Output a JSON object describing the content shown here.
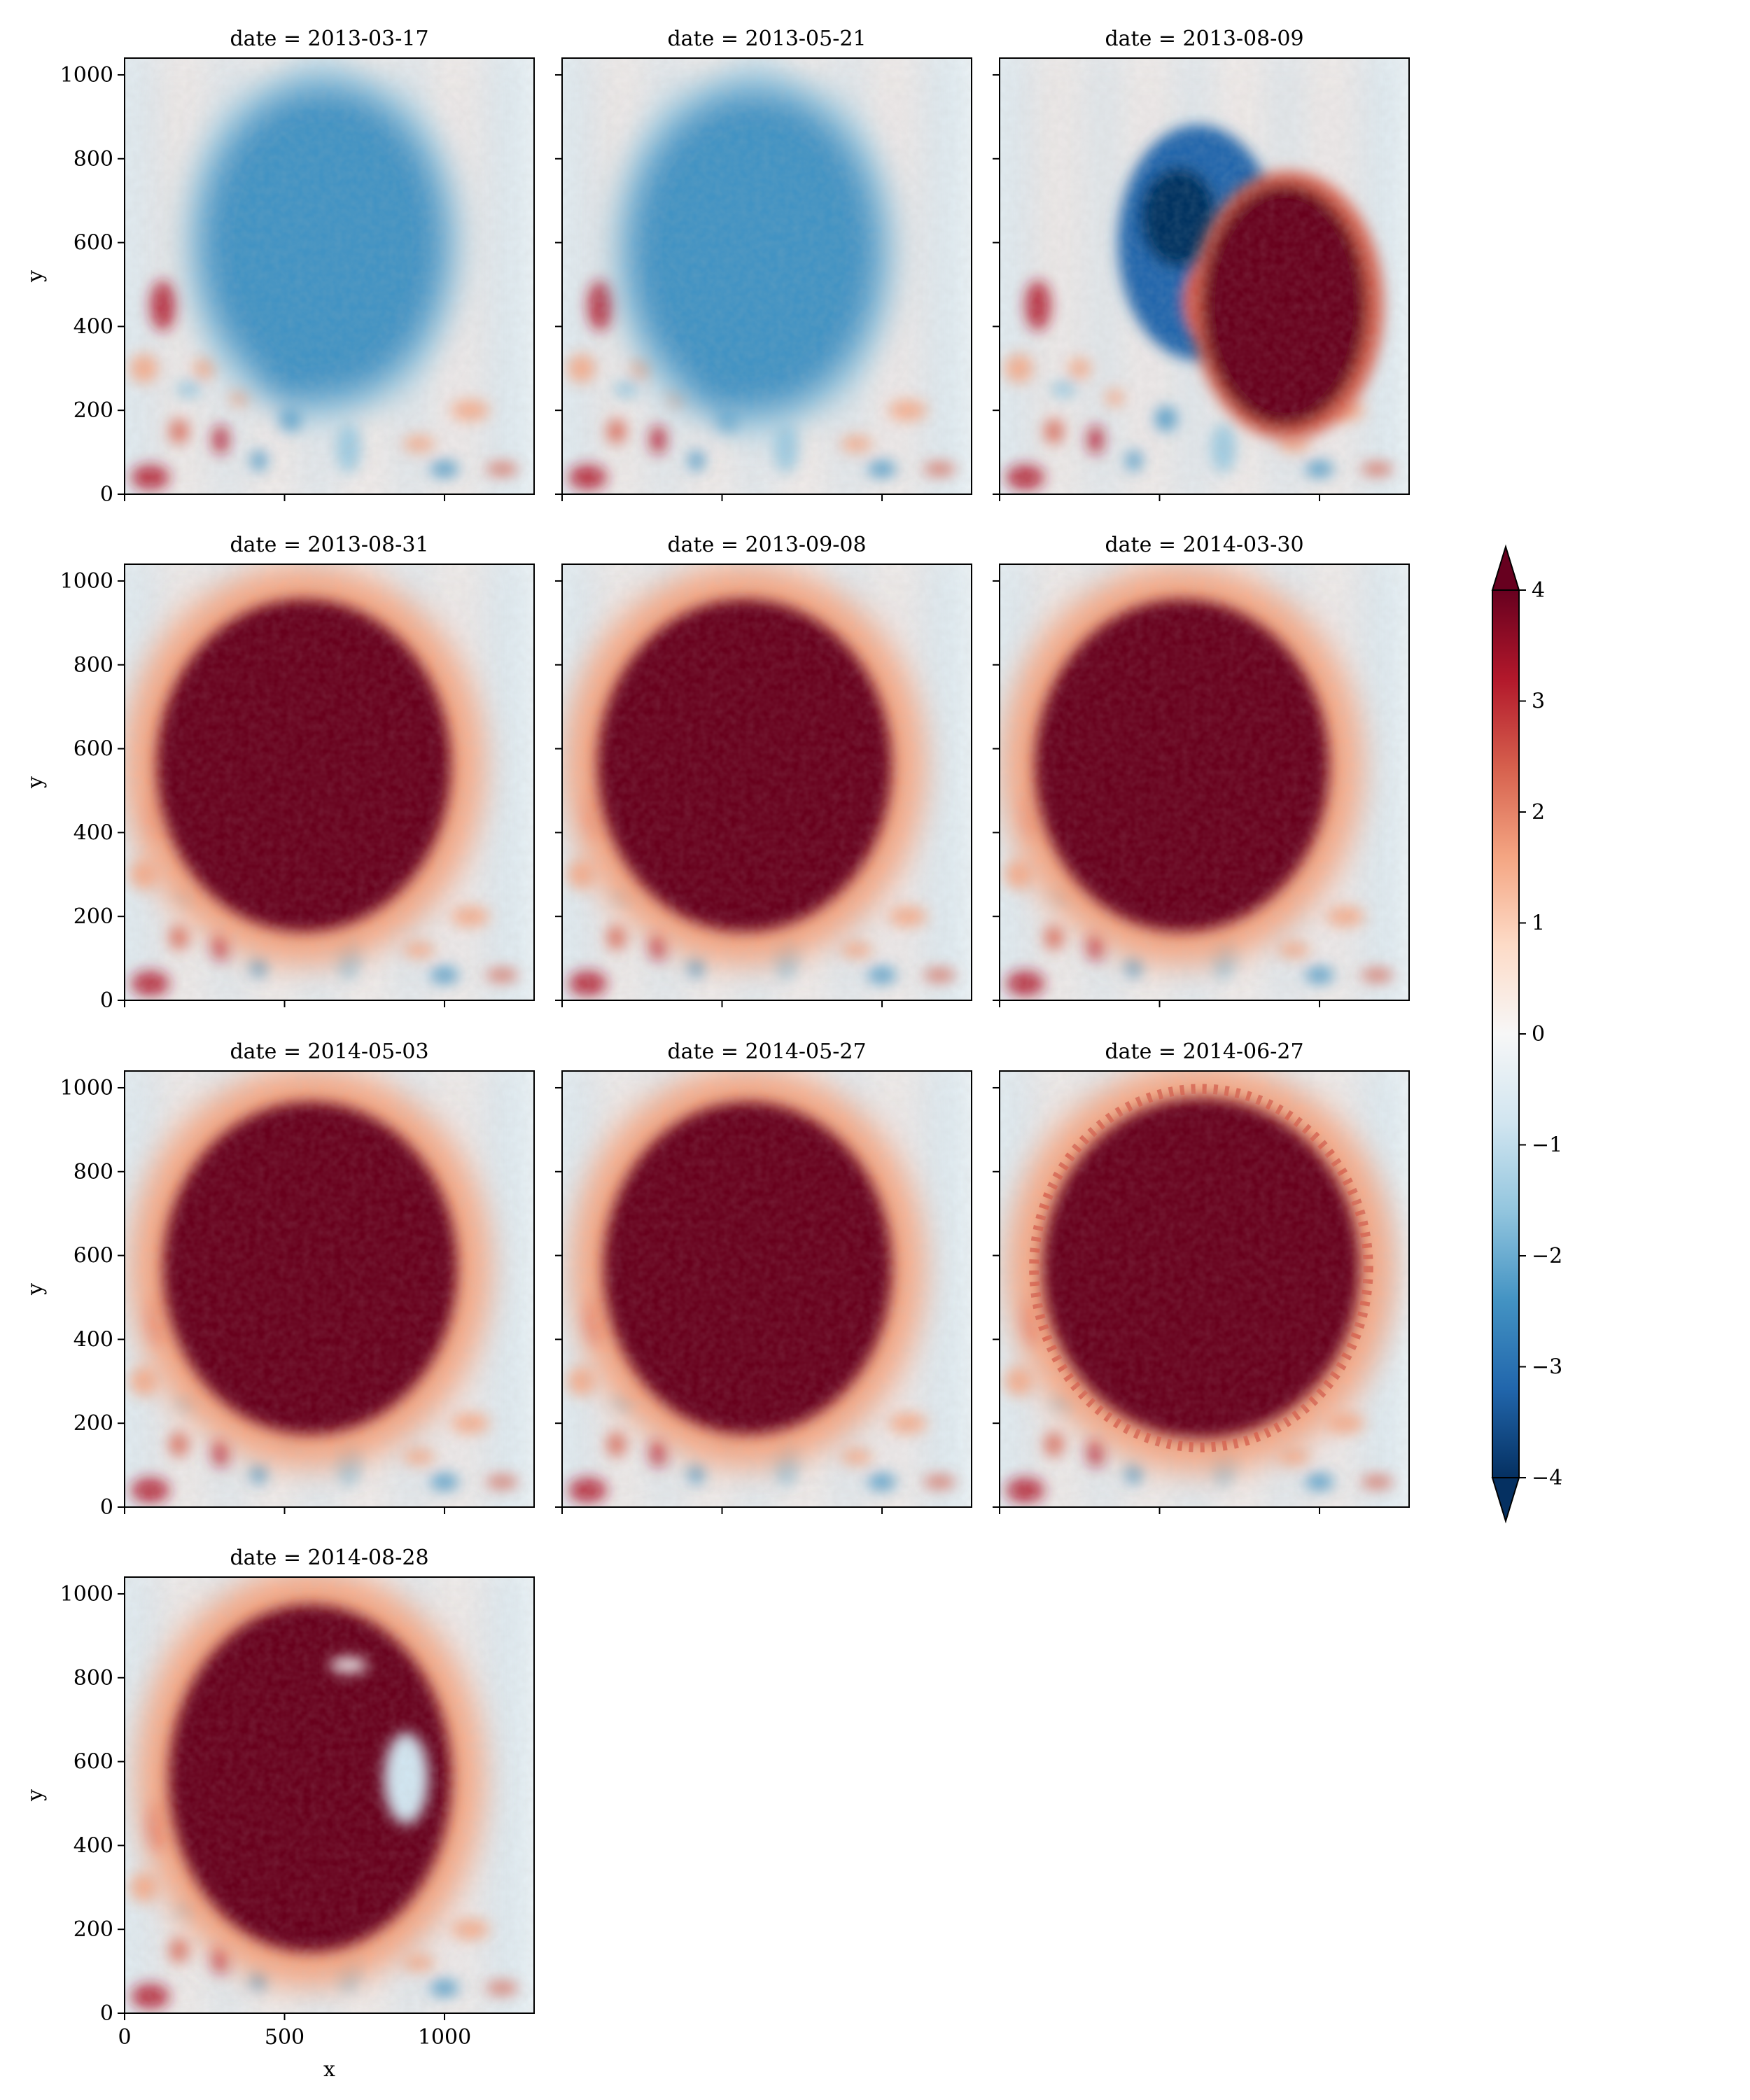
{
  "chart_data": {
    "type": "heatmap",
    "layout": "faceted grid, 3 columns",
    "facet_key": "date",
    "panels": [
      {
        "title": "date = 2013-03-17",
        "state": "negative",
        "center": [
          620,
          600
        ],
        "radius": [
          400,
          400
        ]
      },
      {
        "title": "date = 2013-05-21",
        "state": "negative",
        "center": [
          600,
          580
        ],
        "radius": [
          410,
          410
        ]
      },
      {
        "title": "date = 2013-08-09",
        "state": "mixed",
        "center": [
          800,
          480
        ],
        "radius": [
          420,
          380
        ]
      },
      {
        "title": "date = 2013-08-31",
        "state": "positive",
        "center": [
          560,
          560
        ],
        "radius": [
          510,
          440
        ]
      },
      {
        "title": "date = 2013-09-08",
        "state": "positive",
        "center": [
          570,
          560
        ],
        "radius": [
          510,
          440
        ]
      },
      {
        "title": "date = 2014-03-30",
        "state": "positive",
        "center": [
          570,
          560
        ],
        "radius": [
          510,
          440
        ]
      },
      {
        "title": "date = 2014-05-03",
        "state": "positive",
        "center": [
          580,
          570
        ],
        "radius": [
          510,
          440
        ]
      },
      {
        "title": "date = 2014-05-27",
        "state": "positive",
        "center": [
          580,
          570
        ],
        "radius": [
          500,
          440
        ]
      },
      {
        "title": "date = 2014-06-27",
        "state": "positive-speckled",
        "center": [
          630,
          570
        ],
        "radius": [
          550,
          450
        ]
      },
      {
        "title": "date = 2014-08-28",
        "state": "positive-with-gaps",
        "center": [
          580,
          560
        ],
        "radius": [
          490,
          460
        ]
      }
    ],
    "xlabel": "x",
    "ylabel": "y",
    "xlim": [
      0,
      1280
    ],
    "ylim": [
      0,
      1040
    ],
    "xticks": [
      0,
      500,
      1000
    ],
    "yticks": [
      0,
      200,
      400,
      600,
      800,
      1000
    ],
    "colorbar": {
      "cmap": "RdBu_r",
      "vmin": -4,
      "vmax": 4,
      "extend": "both",
      "ticks": [
        4,
        3,
        2,
        1,
        0,
        -1,
        -2,
        -3,
        -4
      ],
      "tick_labels": [
        "4",
        "3",
        "2",
        "1",
        "0",
        "−1",
        "−2",
        "−3",
        "−4"
      ],
      "colors": [
        "#67001f",
        "#b2182b",
        "#d6604d",
        "#f4a582",
        "#fddbc7",
        "#f7f7f7",
        "#d1e5f0",
        "#92c5de",
        "#4393c3",
        "#2166ac",
        "#053061"
      ]
    }
  }
}
